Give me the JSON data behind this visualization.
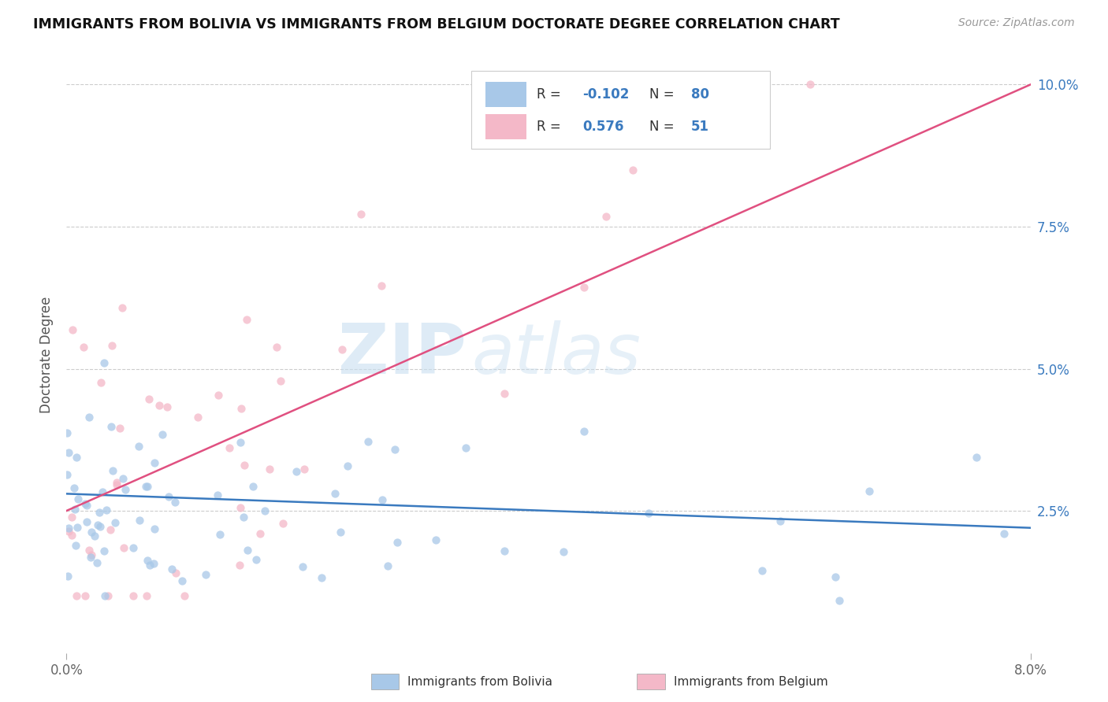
{
  "title": "IMMIGRANTS FROM BOLIVIA VS IMMIGRANTS FROM BELGIUM DOCTORATE DEGREE CORRELATION CHART",
  "source": "Source: ZipAtlas.com",
  "ylabel": "Doctorate Degree",
  "bolivia_color": "#a8c8e8",
  "belgium_color": "#f4b8c8",
  "bolivia_line_color": "#3a7abf",
  "belgium_line_color": "#e05080",
  "r_bolivia": -0.102,
  "n_bolivia": 80,
  "r_belgium": 0.576,
  "n_belgium": 51,
  "watermark_zip": "ZIP",
  "watermark_atlas": "atlas",
  "xlim": [
    0.0,
    0.08
  ],
  "ylim": [
    0.0,
    0.105
  ],
  "yticks": [
    0.025,
    0.05,
    0.075,
    0.1
  ],
  "ytick_labels": [
    "2.5%",
    "5.0%",
    "7.5%",
    "10.0%"
  ],
  "xtick_left_label": "0.0%",
  "xtick_right_label": "8.0%",
  "legend_r_color": "#3a7abf",
  "legend_n_color": "#3a7abf",
  "bolivia_seed": 12,
  "belgium_seed": 7
}
